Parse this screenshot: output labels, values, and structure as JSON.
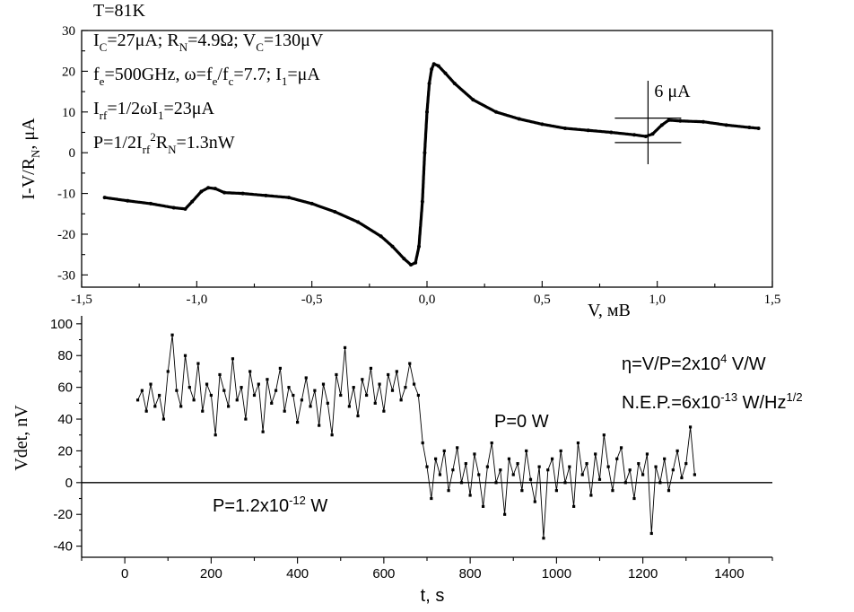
{
  "chart_data": [
    {
      "type": "line",
      "xlabel": "V, мВ",
      "ylabel_parts": [
        "I-V/R",
        "N",
        ", μA"
      ],
      "xlim": [
        -1.5,
        1.5
      ],
      "ylim": [
        -33,
        30
      ],
      "x_ticks": [
        "-1,5",
        "-1,0",
        "-0,5",
        "0,0",
        "0,5",
        "1,0",
        "1,5"
      ],
      "y_ticks": [
        "-30",
        "-20",
        "-10",
        "0",
        "10",
        "20",
        "30"
      ],
      "grid": false,
      "annotations": [
        {
          "parts": [
            [
              "T=81K",
              ""
            ]
          ]
        },
        {
          "parts": [
            [
              "I",
              ""
            ],
            [
              "C",
              "sub"
            ],
            [
              "=27μA; R",
              ""
            ],
            [
              "N",
              "sub"
            ],
            [
              "=4.9Ω; V",
              ""
            ],
            [
              "C",
              "sub"
            ],
            [
              "=130μV",
              ""
            ]
          ]
        },
        {
          "parts": [
            [
              "f",
              ""
            ],
            [
              "e",
              "sub"
            ],
            [
              "=500GHz, ω=f",
              ""
            ],
            [
              "e",
              "sub"
            ],
            [
              "/f",
              ""
            ],
            [
              "c",
              "sub"
            ],
            [
              "=7.7; I",
              ""
            ],
            [
              "1",
              "sub"
            ],
            [
              "=μA",
              ""
            ]
          ]
        },
        {
          "parts": [
            [
              "I",
              ""
            ],
            [
              "rf",
              "sub"
            ],
            [
              "=1/2ωI",
              ""
            ],
            [
              "1",
              "sub"
            ],
            [
              "=23μA",
              ""
            ]
          ]
        },
        {
          "parts": [
            [
              "P=1/2I",
              ""
            ],
            [
              "rf",
              "sub"
            ],
            [
              "2",
              "sup"
            ],
            [
              "R",
              ""
            ],
            [
              "N",
              "sub"
            ],
            [
              "=1.3nW",
              ""
            ]
          ]
        }
      ],
      "scale_marker": {
        "label": "6 μA",
        "x": 0.96,
        "y_low": 2.5,
        "y_high": 8.5
      },
      "series": [
        {
          "x": [
            -1.4,
            -1.3,
            -1.2,
            -1.1,
            -1.05,
            -1.02,
            -0.98,
            -0.95,
            -0.92,
            -0.88,
            -0.8,
            -0.7,
            -0.6,
            -0.5,
            -0.4,
            -0.3,
            -0.2,
            -0.15,
            -0.1,
            -0.07,
            -0.05,
            -0.035,
            -0.02,
            -0.01,
            0.0,
            0.01,
            0.02,
            0.03,
            0.05,
            0.08,
            0.12,
            0.2,
            0.3,
            0.4,
            0.5,
            0.6,
            0.7,
            0.8,
            0.9,
            0.95,
            0.98,
            1.02,
            1.05,
            1.1,
            1.2,
            1.3,
            1.4,
            1.44
          ],
          "y": [
            -11,
            -11.8,
            -12.5,
            -13.5,
            -13.8,
            -12,
            -9.5,
            -8.6,
            -8.8,
            -9.8,
            -10,
            -10.5,
            -11,
            -12.5,
            -14.5,
            -17,
            -20.5,
            -23,
            -26,
            -27.5,
            -27,
            -23,
            -12,
            0,
            10,
            17,
            20.5,
            21.8,
            21.3,
            19.5,
            17,
            13,
            10,
            8.3,
            7,
            6,
            5.5,
            5,
            4.4,
            4,
            4.6,
            6.8,
            8,
            7.8,
            7.6,
            6.8,
            6.2,
            6
          ]
        }
      ]
    },
    {
      "type": "scatter",
      "xlabel": "t, s",
      "ylabel": "Vdet, nV",
      "xlim": [
        -100,
        1500
      ],
      "ylim": [
        -47,
        105
      ],
      "x_ticks": [
        "0",
        "200",
        "400",
        "600",
        "800",
        "1000",
        "1200",
        "1400"
      ],
      "y_ticks": [
        "-40",
        "-20",
        "0",
        "20",
        "40",
        "60",
        "80",
        "100"
      ],
      "grid": false,
      "zero_line": true,
      "annotations": [
        {
          "parts": [
            [
              "P=1.2x10",
              ""
            ],
            [
              "-12",
              "sup"
            ],
            [
              " W",
              ""
            ]
          ]
        },
        {
          "parts": [
            [
              "P=0 W",
              ""
            ]
          ]
        },
        {
          "parts": [
            [
              "η=V/P=2x10",
              ""
            ],
            [
              "4",
              "sup"
            ],
            [
              " V/W",
              ""
            ]
          ]
        },
        {
          "parts": [
            [
              "N.E.P.=6x10",
              ""
            ],
            [
              "-13",
              "sup"
            ],
            [
              " W/Hz",
              ""
            ],
            [
              "1/2",
              "sup"
            ]
          ]
        }
      ],
      "series": [
        {
          "x": [
            30,
            40,
            50,
            60,
            70,
            80,
            90,
            100,
            110,
            120,
            130,
            140,
            150,
            160,
            170,
            180,
            190,
            200,
            210,
            220,
            230,
            240,
            250,
            260,
            270,
            280,
            290,
            300,
            310,
            320,
            330,
            340,
            350,
            360,
            370,
            380,
            390,
            400,
            410,
            420,
            430,
            440,
            450,
            460,
            470,
            480,
            490,
            500,
            510,
            520,
            530,
            540,
            550,
            560,
            570,
            580,
            590,
            600,
            610,
            620,
            630,
            640,
            650,
            660,
            670,
            680,
            690,
            700,
            710,
            720,
            730,
            740,
            750,
            760,
            770,
            780,
            790,
            800,
            810,
            820,
            830,
            840,
            850,
            860,
            870,
            880,
            890,
            900,
            910,
            920,
            930,
            940,
            950,
            960,
            970,
            980,
            990,
            1000,
            1010,
            1020,
            1030,
            1040,
            1050,
            1060,
            1070,
            1080,
            1090,
            1100,
            1110,
            1120,
            1130,
            1140,
            1150,
            1160,
            1170,
            1180,
            1190,
            1200,
            1210,
            1220,
            1230,
            1240,
            1250,
            1260,
            1270,
            1280,
            1290,
            1300,
            1310,
            1320
          ],
          "y": [
            52,
            58,
            45,
            62,
            48,
            55,
            40,
            70,
            93,
            58,
            48,
            80,
            60,
            52,
            75,
            45,
            62,
            55,
            30,
            68,
            58,
            48,
            78,
            52,
            60,
            40,
            70,
            55,
            62,
            32,
            65,
            50,
            58,
            72,
            45,
            60,
            55,
            38,
            52,
            66,
            48,
            58,
            36,
            62,
            50,
            30,
            68,
            55,
            85,
            48,
            60,
            42,
            65,
            55,
            72,
            50,
            62,
            45,
            68,
            58,
            70,
            52,
            60,
            75,
            62,
            55,
            25,
            10,
            -10,
            15,
            5,
            20,
            -5,
            8,
            22,
            0,
            12,
            -8,
            18,
            5,
            -15,
            10,
            25,
            0,
            8,
            -20,
            15,
            5,
            12,
            -5,
            20,
            2,
            -12,
            10,
            -35,
            8,
            15,
            -5,
            20,
            0,
            10,
            -15,
            25,
            5,
            12,
            -8,
            18,
            2,
            30,
            10,
            -5,
            15,
            22,
            0,
            8,
            -10,
            12,
            5,
            18,
            -32,
            10,
            0,
            15,
            -5,
            8,
            20,
            3,
            12,
            35,
            5
          ]
        }
      ]
    }
  ]
}
